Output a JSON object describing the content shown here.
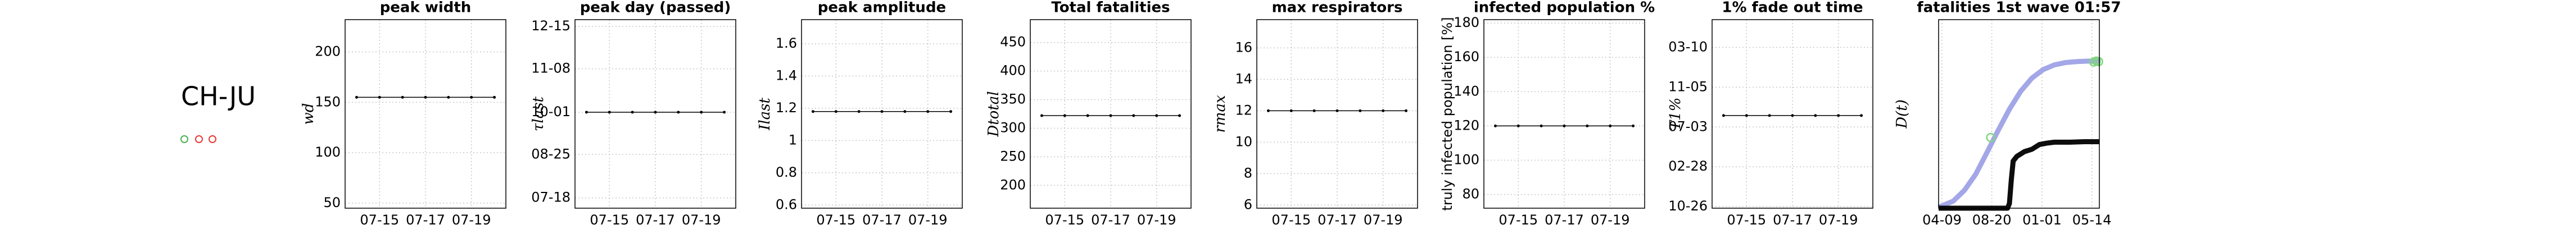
{
  "label": "CH-JU",
  "chart_data": [
    {
      "type": "line",
      "title": "peak width",
      "y_label": "wd",
      "categories": [
        null,
        "07-15",
        null,
        "07-17",
        null,
        "07-19",
        null
      ],
      "series": [
        {
          "color": "#000000",
          "values": [
            155,
            155,
            155,
            155,
            155,
            155,
            155
          ]
        }
      ],
      "ylim": [
        45,
        232
      ],
      "yticks": [
        50,
        100,
        150,
        200
      ],
      "grid": true
    },
    {
      "type": "line",
      "title": "peak day (passed)",
      "y_label": "τlast",
      "categories": [
        null,
        "07-15",
        null,
        "07-17",
        null,
        "07-19",
        null
      ],
      "series": [
        {
          "color": "#000000",
          "values": [
            274,
            274,
            274,
            274,
            274,
            274,
            274
          ]
        }
      ],
      "ylim": [
        190,
        355
      ],
      "yticks": [
        {
          "value": 199,
          "label": "07-18"
        },
        {
          "value": 237,
          "label": "08-25"
        },
        {
          "value": 274,
          "label": "10-01"
        },
        {
          "value": 312,
          "label": "11-08"
        },
        {
          "value": 349,
          "label": "12-15"
        }
      ],
      "grid": true
    },
    {
      "type": "line",
      "title": "peak amplitude",
      "y_label": "Ilast",
      "categories": [
        null,
        "07-15",
        null,
        "07-17",
        null,
        "07-19",
        null
      ],
      "series": [
        {
          "color": "#000000",
          "values": [
            1.18,
            1.18,
            1.18,
            1.18,
            1.18,
            1.18,
            1.18
          ]
        }
      ],
      "ylim": [
        0.58,
        1.75
      ],
      "yticks": [
        0.6,
        0.8,
        1,
        1.2,
        1.4,
        1.6
      ],
      "grid": true
    },
    {
      "type": "line",
      "title": "Total fatalities",
      "y_label": "Dtotal",
      "categories": [
        null,
        "07-15",
        null,
        "07-17",
        null,
        "07-19",
        null
      ],
      "series": [
        {
          "color": "#000000",
          "values": [
            322,
            322,
            322,
            322,
            322,
            322,
            322
          ]
        }
      ],
      "ylim": [
        160,
        490
      ],
      "yticks": [
        200,
        250,
        300,
        350,
        400,
        450
      ],
      "grid": true
    },
    {
      "type": "line",
      "title": "max respirators",
      "y_label": "rmax",
      "categories": [
        null,
        "07-15",
        null,
        "07-17",
        null,
        "07-19",
        null
      ],
      "series": [
        {
          "color": "#000000",
          "values": [
            12,
            12,
            12,
            12,
            12,
            12,
            12
          ]
        }
      ],
      "ylim": [
        5.8,
        17.8
      ],
      "yticks": [
        6,
        8,
        10,
        12,
        14,
        16
      ],
      "grid": true
    },
    {
      "type": "line",
      "title": "infected population %",
      "y_label": "truly infected population [%]",
      "categories": [
        null,
        "07-15",
        null,
        "07-17",
        null,
        "07-19",
        null
      ],
      "series": [
        {
          "color": "#000000",
          "values": [
            120,
            120,
            120,
            120,
            120,
            120,
            120
          ]
        }
      ],
      "ylim": [
        72,
        182
      ],
      "yticks": [
        80,
        100,
        120,
        140,
        160,
        180
      ],
      "grid": true
    },
    {
      "type": "line",
      "title": "1% fade out time",
      "y_label": "T1%",
      "categories": [
        null,
        "07-15",
        null,
        "07-17",
        null,
        "07-19",
        null
      ],
      "series": [
        {
          "color": "#000000",
          "values": [
            585,
            585,
            585,
            585,
            585,
            585,
            585
          ]
        }
      ],
      "ylim": [
        294,
        886
      ],
      "yticks": [
        {
          "value": 299,
          "label": "10-26"
        },
        {
          "value": 424,
          "label": "02-28"
        },
        {
          "value": 549,
          "label": "07-03"
        },
        {
          "value": 674,
          "label": "11-05"
        },
        {
          "value": 799,
          "label": "03-10"
        }
      ],
      "grid": true
    },
    {
      "type": "xy",
      "title": "fatalities 1st wave 01:57",
      "y_label": "D(t)",
      "xlim": [
        -9,
        420
      ],
      "xticks": [
        {
          "value": 0,
          "label": "04-09"
        },
        {
          "value": 133,
          "label": "08-20"
        },
        {
          "value": 267,
          "label": "01-01"
        },
        {
          "value": 400,
          "label": "05-14"
        }
      ],
      "ylim": [
        0,
        400
      ],
      "grid": true,
      "series": [
        {
          "color": "#9ea2e6",
          "width": 9,
          "x": [
            -9,
            0,
            30,
            60,
            90,
            120,
            150,
            180,
            210,
            240,
            270,
            300,
            330,
            360,
            390,
            420
          ],
          "values": [
            2,
            5,
            15,
            38,
            72,
            118,
            165,
            210,
            248,
            276,
            294,
            304,
            309,
            311,
            312,
            312
          ]
        },
        {
          "color": "#000000",
          "width": 9,
          "x": [
            -9,
            60,
            120,
            175,
            180,
            185,
            190,
            200,
            210,
            220,
            240,
            260,
            280,
            300,
            340,
            380,
            420
          ],
          "values": [
            0,
            0,
            0,
            0,
            10,
            60,
            100,
            110,
            115,
            120,
            125,
            135,
            138,
            140,
            140,
            141,
            141
          ]
        },
        {
          "color": "#7fd67f",
          "marker": "circle",
          "x": [
            130,
            405,
            412,
            418
          ],
          "values": [
            150,
            310,
            312,
            311
          ]
        }
      ]
    }
  ]
}
